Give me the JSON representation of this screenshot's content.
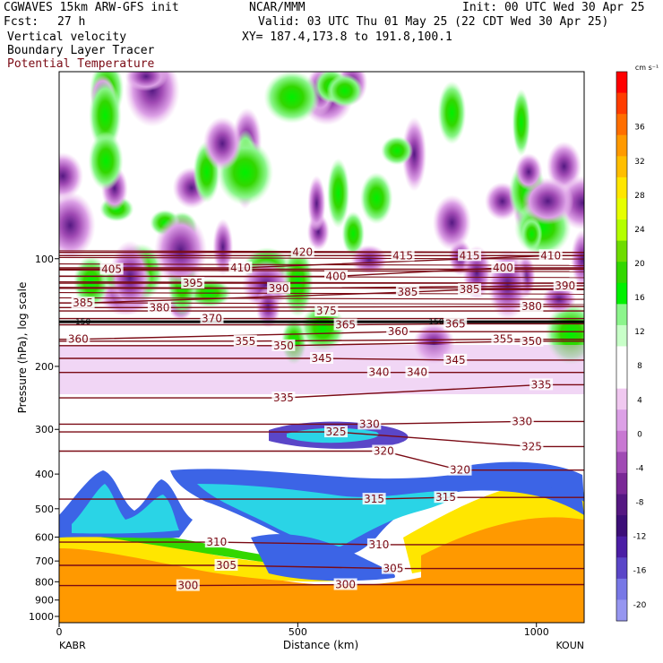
{
  "header": {
    "line1_left": "CGWAVES 15km ARW-GFS init",
    "line1_center": "NCAR/MMM",
    "line1_right": "Init: 00 UTC Wed 30 Apr 25",
    "fcst_label": "Fcst:",
    "fcst_value": "27 h",
    "valid": "Valid: 03 UTC Thu 01 May 25 (22 CDT Wed 30 Apr 25)",
    "field1": "Vertical velocity",
    "xy": "XY= 187.4,173.8 to 191.8,100.1",
    "field2": "Boundary Layer Tracer",
    "field3": "Potential Temperature"
  },
  "colors": {
    "theta_line": "#7a0a14",
    "theta_label": "#7a0a14"
  },
  "chart_data": {
    "type": "heatmap",
    "title": "",
    "xlabel": "Distance (km)",
    "ylabel": "Pressure (hPa), log scale",
    "x_axis": {
      "range": [
        0,
        1100
      ],
      "ticks": [
        0,
        500,
        1000
      ],
      "end_labels": [
        "KABR",
        "KOUN"
      ]
    },
    "y_axis": {
      "scale": "log",
      "range": [
        1000,
        30
      ],
      "ticks": [
        100,
        200,
        300,
        400,
        500,
        600,
        700,
        800,
        900,
        1000
      ]
    },
    "colorbar": {
      "units": "cm s⁻¹",
      "levels": [
        36,
        32,
        28,
        24,
        20,
        16,
        12,
        8,
        4,
        0,
        -4,
        -8,
        -12,
        -16,
        -20
      ],
      "colors": [
        "#ff0000",
        "#ff3c00",
        "#ff6e00",
        "#ff9900",
        "#ffbe00",
        "#ffe600",
        "#e6ff00",
        "#b4ff00",
        "#6edc00",
        "#32d700",
        "#00f000",
        "#8cf58c",
        "#c8ffc8",
        "#ffffff",
        "#ffffff",
        "#f0c8f0",
        "#dca0e6",
        "#c878d2",
        "#a04ab4",
        "#7a2896",
        "#551882",
        "#3c0f78",
        "#4b1ea5",
        "#5a46c8",
        "#7878e6",
        "#9696f0"
      ]
    },
    "theta_contours": [
      {
        "theta": 300,
        "x": 270,
        "p": 820
      },
      {
        "theta": 300,
        "x": 600,
        "p": 815
      },
      {
        "theta": 305,
        "x": 350,
        "p": 720
      },
      {
        "theta": 305,
        "x": 700,
        "p": 735
      },
      {
        "theta": 310,
        "x": 330,
        "p": 620
      },
      {
        "theta": 310,
        "x": 670,
        "p": 630
      },
      {
        "theta": 315,
        "x": 660,
        "p": 470
      },
      {
        "theta": 315,
        "x": 810,
        "p": 465
      },
      {
        "theta": 320,
        "x": 680,
        "p": 345
      },
      {
        "theta": 320,
        "x": 840,
        "p": 390
      },
      {
        "theta": 325,
        "x": 580,
        "p": 305
      },
      {
        "theta": 325,
        "x": 990,
        "p": 335
      },
      {
        "theta": 330,
        "x": 650,
        "p": 290
      },
      {
        "theta": 330,
        "x": 970,
        "p": 285
      },
      {
        "theta": 335,
        "x": 470,
        "p": 245
      },
      {
        "theta": 335,
        "x": 1010,
        "p": 225
      },
      {
        "theta": 340,
        "x": 670,
        "p": 208
      },
      {
        "theta": 340,
        "x": 750,
        "p": 208
      },
      {
        "theta": 345,
        "x": 550,
        "p": 190
      },
      {
        "theta": 345,
        "x": 830,
        "p": 192
      },
      {
        "theta": 350,
        "x": 470,
        "p": 175
      },
      {
        "theta": 350,
        "x": 990,
        "p": 170
      },
      {
        "theta": 355,
        "x": 390,
        "p": 170
      },
      {
        "theta": 355,
        "x": 930,
        "p": 168
      },
      {
        "theta": 360,
        "x": 40,
        "p": 168
      },
      {
        "theta": 360,
        "x": 710,
        "p": 160
      },
      {
        "theta": 365,
        "x": 600,
        "p": 153
      },
      {
        "theta": 365,
        "x": 830,
        "p": 152
      },
      {
        "theta": 370,
        "x": 320,
        "p": 147
      },
      {
        "theta": 375,
        "x": 560,
        "p": 140
      },
      {
        "theta": 380,
        "x": 210,
        "p": 137
      },
      {
        "theta": 380,
        "x": 990,
        "p": 136
      },
      {
        "theta": 385,
        "x": 50,
        "p": 133
      },
      {
        "theta": 385,
        "x": 730,
        "p": 124
      },
      {
        "theta": 385,
        "x": 860,
        "p": 122
      },
      {
        "theta": 390,
        "x": 460,
        "p": 121
      },
      {
        "theta": 390,
        "x": 1060,
        "p": 119
      },
      {
        "theta": 395,
        "x": 280,
        "p": 117
      },
      {
        "theta": 400,
        "x": 580,
        "p": 112
      },
      {
        "theta": 400,
        "x": 930,
        "p": 106
      },
      {
        "theta": 405,
        "x": 110,
        "p": 107
      },
      {
        "theta": 410,
        "x": 380,
        "p": 106
      },
      {
        "theta": 410,
        "x": 1030,
        "p": 98
      },
      {
        "theta": 415,
        "x": 720,
        "p": 98
      },
      {
        "theta": 415,
        "x": 860,
        "p": 98
      },
      {
        "theta": 420,
        "x": 510,
        "p": 96
      }
    ],
    "tracer_labels": [
      {
        "text": "150",
        "x": 50,
        "p": 150
      },
      {
        "text": "150",
        "x": 790,
        "p": 150
      }
    ]
  }
}
